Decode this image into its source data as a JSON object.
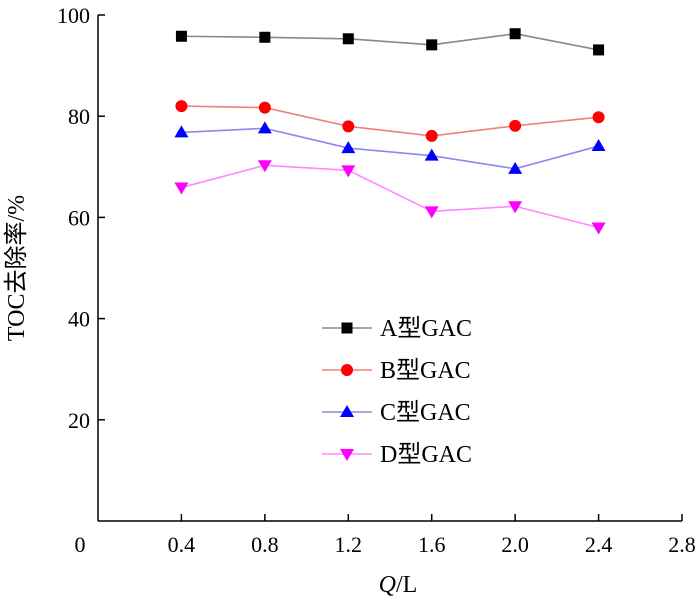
{
  "chart_data": {
    "type": "line",
    "x": [
      0.4,
      0.8,
      1.2,
      1.6,
      2.0,
      2.4
    ],
    "xlim": [
      0,
      2.8
    ],
    "ylim": [
      0,
      100
    ],
    "xticks": [
      "0",
      "0.4",
      "0.8",
      "1.2",
      "1.6",
      "2.0",
      "2.4",
      "2.8"
    ],
    "yticks": [
      "20",
      "40",
      "60",
      "80",
      "100"
    ],
    "xlabel_italic": "Q",
    "xlabel_rest": "/L",
    "ylabel": "TOC去除率/%",
    "grid": false,
    "legend_position": "center-left",
    "series": [
      {
        "name": "A型GAC",
        "values": [
          95.8,
          95.6,
          95.3,
          94.1,
          96.3,
          93.1
        ],
        "color": "#888888",
        "marker": "square-black"
      },
      {
        "name": "B型GAC",
        "values": [
          82.0,
          81.7,
          78.0,
          76.1,
          78.1,
          79.8
        ],
        "color": "#f08080",
        "marker": "circle-red"
      },
      {
        "name": "C型GAC",
        "values": [
          76.8,
          77.6,
          73.7,
          72.2,
          69.6,
          74.1
        ],
        "color": "#8a8ae8",
        "marker": "triangle-up-blue"
      },
      {
        "name": "D型GAC",
        "values": [
          65.9,
          70.3,
          69.3,
          61.2,
          62.2,
          58.0
        ],
        "color": "#ff88ff",
        "marker": "triangle-down-magenta"
      }
    ]
  }
}
